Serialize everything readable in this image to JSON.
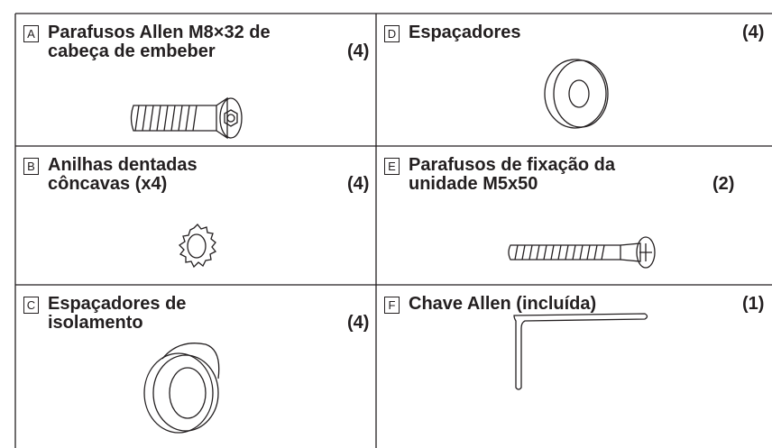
{
  "items": [
    {
      "letter": "A",
      "lines": [
        "Parafusos Allen M8×32 de",
        "cabeça de embeber"
      ],
      "quantity": "(4)"
    },
    {
      "letter": "D",
      "lines": [
        "Espaçadores"
      ],
      "quantity": "(4)"
    },
    {
      "letter": "B",
      "lines": [
        "Anilhas dentadas",
        "côncavas (x4)"
      ],
      "quantity": "(4)"
    },
    {
      "letter": "E",
      "lines": [
        "Parafusos de fixação da",
        "unidade M5x50"
      ],
      "quantity": "(2)"
    },
    {
      "letter": "C",
      "lines": [
        "Espaçadores de",
        "isolamento"
      ],
      "quantity": "(4)"
    },
    {
      "letter": "F",
      "lines": [
        "Chave Allen (incluída)"
      ],
      "quantity": "(1)"
    }
  ]
}
